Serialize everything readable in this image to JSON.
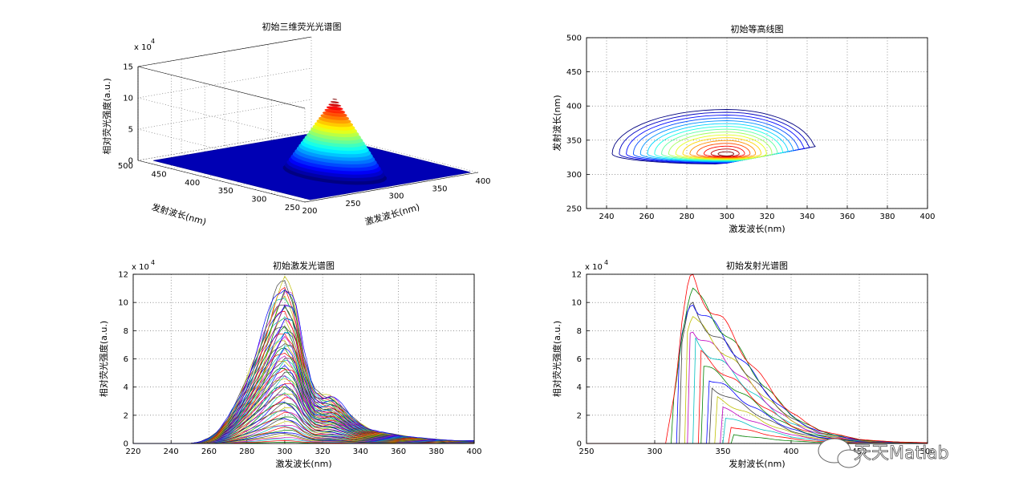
{
  "chart_data": [
    {
      "id": "surf",
      "type": "surface3d",
      "title": "初始三维荧光光谱图",
      "xlabel": "激发波长(nm)",
      "ylabel": "发射波长(nm)",
      "zlabel": "相对荧光强度(a.u.)",
      "exponent": "x 10",
      "exponent_power": "4",
      "xlim": [
        200,
        400
      ],
      "ylim": [
        250,
        500
      ],
      "zlim": [
        0,
        15
      ],
      "xticks": [
        200,
        250,
        300,
        350,
        400
      ],
      "yticks": [
        250,
        300,
        350,
        400,
        450,
        500
      ],
      "zticks": [
        0,
        5,
        10,
        15
      ],
      "peak": {
        "ex": 300,
        "em": 335,
        "z": 11.8
      },
      "grid": true
    },
    {
      "id": "contour",
      "type": "contour",
      "title": "初始等高线图",
      "xlabel": "激发波长(nm)",
      "ylabel": "发射波长(nm)",
      "xlim": [
        230,
        400
      ],
      "ylim": [
        250,
        500
      ],
      "xticks": [
        240,
        260,
        280,
        300,
        320,
        340,
        360,
        380,
        400
      ],
      "yticks": [
        250,
        300,
        350,
        400,
        450,
        500
      ],
      "peak": {
        "ex": 300,
        "em": 330
      },
      "levels": 16,
      "grid": true
    },
    {
      "id": "ex",
      "type": "line",
      "title": "初始激发光谱图",
      "xlabel": "激发波长(nm)",
      "ylabel": "相对荧光强度(a.u.)",
      "exponent": "x 10",
      "exponent_power": "4",
      "xlim": [
        220,
        400
      ],
      "ylim": [
        0,
        12
      ],
      "xticks": [
        220,
        240,
        260,
        280,
        300,
        320,
        340,
        360,
        380,
        400
      ],
      "yticks": [
        0,
        2,
        4,
        6,
        8,
        10,
        12
      ],
      "envelope": {
        "x": [
          250,
          255,
          260,
          265,
          270,
          275,
          280,
          285,
          290,
          295,
          298,
          300,
          303,
          305,
          310,
          315,
          320,
          325,
          330,
          335,
          340,
          345,
          350,
          360,
          370,
          380,
          390,
          400
        ],
        "y": [
          0,
          0.1,
          0.4,
          0.9,
          1.8,
          3.0,
          4.6,
          6.4,
          8.4,
          10.5,
          11.2,
          11.6,
          11.0,
          10.5,
          6.4,
          3.8,
          3.4,
          3.4,
          2.7,
          1.9,
          1.4,
          1.0,
          0.8,
          0.6,
          0.4,
          0.3,
          0.2,
          0.2
        ]
      },
      "series_count": 70,
      "grid": true
    },
    {
      "id": "em",
      "type": "line",
      "title": "初始发射光谱图",
      "xlabel": "发射波长(nm)",
      "ylabel": "相对荧光强度(a.u.)",
      "exponent": "x 10",
      "exponent_power": "4",
      "xlim": [
        250,
        500
      ],
      "ylim": [
        0,
        12
      ],
      "xticks": [
        250,
        300,
        350,
        400,
        450,
        500
      ],
      "yticks": [
        0,
        2,
        4,
        6,
        8,
        10,
        12
      ],
      "envelope": {
        "x": [
          290,
          300,
          310,
          315,
          320,
          325,
          328,
          332,
          340,
          350,
          360,
          370,
          380,
          390,
          400,
          410,
          420,
          430,
          440,
          450,
          460,
          480,
          500
        ],
        "y": [
          0,
          0.2,
          1.2,
          4.0,
          8.5,
          11.2,
          11.6,
          10.8,
          9.8,
          8.6,
          7.2,
          5.8,
          4.4,
          3.2,
          2.2,
          1.5,
          1.0,
          0.7,
          0.5,
          0.3,
          0.2,
          0.1,
          0.05
        ]
      },
      "series_count": 16,
      "grid": true
    }
  ],
  "watermark": {
    "text": "天天Matlab"
  }
}
